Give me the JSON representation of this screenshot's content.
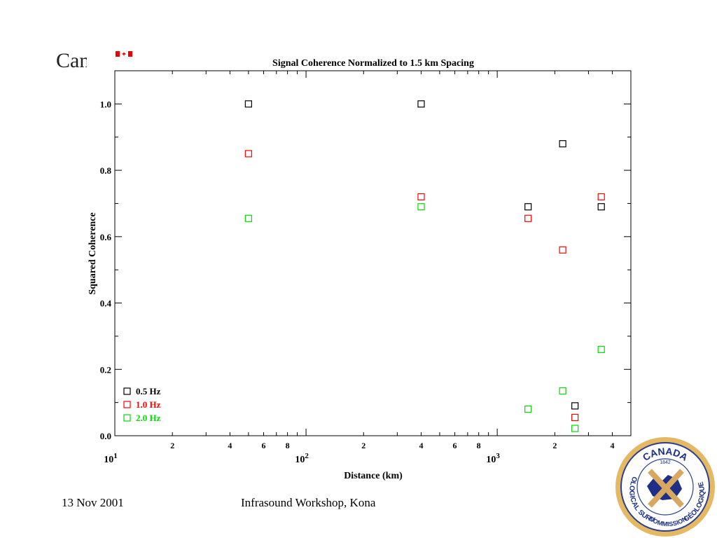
{
  "slide": {
    "title": "Canada",
    "footer_date": "13 Nov 2001",
    "footer_event": "Infrasound Workshop, Kona"
  },
  "logo": {
    "top_text": "CANADA",
    "year": "1842",
    "left_text": "GEOLOGICAL SURVEY",
    "bottom_text": "COMMISSION",
    "right_text": "GÉOLOGIQUE"
  },
  "chart_data": {
    "type": "scatter",
    "title": "Signal Coherence Normalized to 1.5 km Spacing",
    "xlabel": "Distance (km)",
    "ylabel": "Squared Coherence",
    "x_scale": "log",
    "xlim": [
      10,
      5000
    ],
    "ylim": [
      0,
      1.1
    ],
    "y_ticks": [
      "0.0",
      "0.2",
      "0.4",
      "0.6",
      "0.8",
      "1.0"
    ],
    "x_ticks_major": [
      {
        "base": "10",
        "exp": "1"
      },
      {
        "base": "10",
        "exp": "2"
      },
      {
        "base": "10",
        "exp": "3"
      }
    ],
    "x_ticks_minor_labels": [
      "2",
      "4",
      "6",
      "8",
      "2",
      "4",
      "6",
      "8",
      "2",
      "4"
    ],
    "legend_position": "bottom-left",
    "series": [
      {
        "name": "0.5 Hz",
        "color": "#000000",
        "marker": "open-square",
        "x": [
          50,
          400,
          1450,
          2200,
          2550,
          3500
        ],
        "y": [
          1.0,
          1.0,
          0.69,
          0.88,
          0.09,
          0.69
        ]
      },
      {
        "name": "1.0 Hz",
        "color": "#ff0000",
        "marker": "open-square",
        "x": [
          50,
          400,
          1450,
          2200,
          2550,
          3500
        ],
        "y": [
          0.85,
          0.72,
          0.655,
          0.56,
          0.055,
          0.72
        ]
      },
      {
        "name": "2.0 Hz",
        "color": "#00dd00",
        "marker": "open-square",
        "x": [
          50,
          400,
          1450,
          2200,
          2550,
          3500
        ],
        "y": [
          0.655,
          0.69,
          0.08,
          0.135,
          0.022,
          0.26
        ]
      }
    ]
  }
}
